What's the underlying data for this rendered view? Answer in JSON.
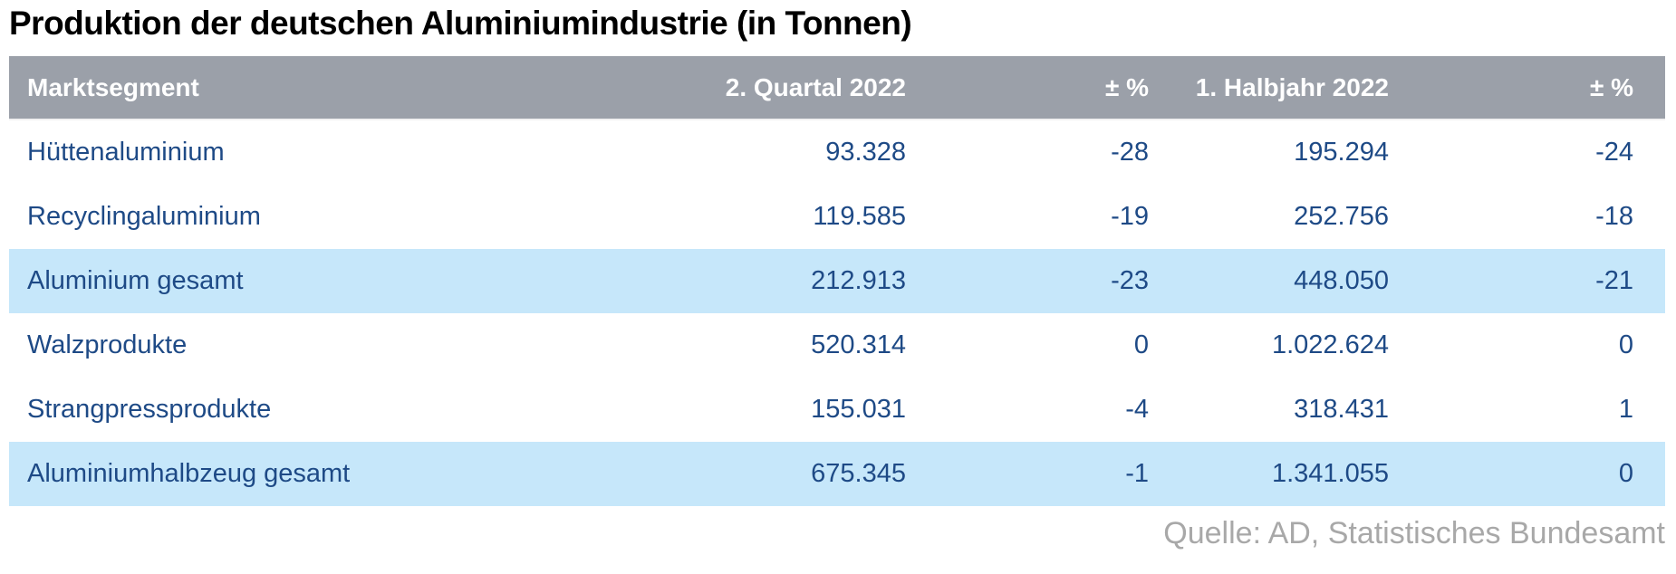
{
  "title": "Produktion der deutschen Aluminiumindustrie (in Tonnen)",
  "source": "Quelle: AD, Statistisches Bundesamt",
  "colors": {
    "header_bg": "#9BA0A9",
    "header_text": "#ffffff",
    "highlight_row_bg": "#C6E7FA",
    "cell_text": "#1E4A86",
    "title_text": "#000000",
    "source_text": "#A8A8A8"
  },
  "table": {
    "columns": [
      "Marktsegment",
      "2. Quartal 2022",
      "± %",
      "1. Halbjahr 2022",
      "± %"
    ],
    "rows": [
      {
        "segment": "Hüttenaluminium",
        "v1": "93.328",
        "p1": "-28",
        "v2": "195.294",
        "p2": "-24"
      },
      {
        "segment": "Recyclingaluminium",
        "v1": "119.585",
        "p1": "-19",
        "v2": "252.756",
        "p2": "-18"
      },
      {
        "segment": "Aluminium gesamt",
        "v1": "212.913",
        "p1": "-23",
        "v2": "448.050",
        "p2": "-21"
      },
      {
        "segment": "Walzprodukte",
        "v1": "520.314",
        "p1": "0",
        "v2": "1.022.624",
        "p2": "0"
      },
      {
        "segment": "Strangpressprodukte",
        "v1": "155.031",
        "p1": "-4",
        "v2": "318.431",
        "p2": "1"
      },
      {
        "segment": "Aluminiumhalbzeug gesamt",
        "v1": "675.345",
        "p1": "-1",
        "v2": "1.341.055",
        "p2": "0"
      }
    ]
  },
  "chart_data": {
    "type": "table",
    "title": "Produktion der deutschen Aluminiumindustrie (in Tonnen)",
    "columns": [
      "Marktsegment",
      "2. Quartal 2022",
      "± %",
      "1. Halbjahr 2022",
      "± %"
    ],
    "rows": [
      [
        "Hüttenaluminium",
        93328,
        -28,
        195294,
        -24
      ],
      [
        "Recyclingaluminium",
        119585,
        -19,
        252756,
        -18
      ],
      [
        "Aluminium gesamt",
        212913,
        -23,
        448050,
        -21
      ],
      [
        "Walzprodukte",
        520314,
        0,
        1022624,
        0
      ],
      [
        "Strangpressprodukte",
        155031,
        -4,
        318431,
        1
      ],
      [
        "Aluminiumhalbzeug gesamt",
        675345,
        -1,
        1341055,
        0
      ]
    ],
    "highlighted_rows": [
      "Aluminium gesamt",
      "Aluminiumhalbzeug gesamt"
    ],
    "source": "Quelle: AD, Statistisches Bundesamt"
  }
}
